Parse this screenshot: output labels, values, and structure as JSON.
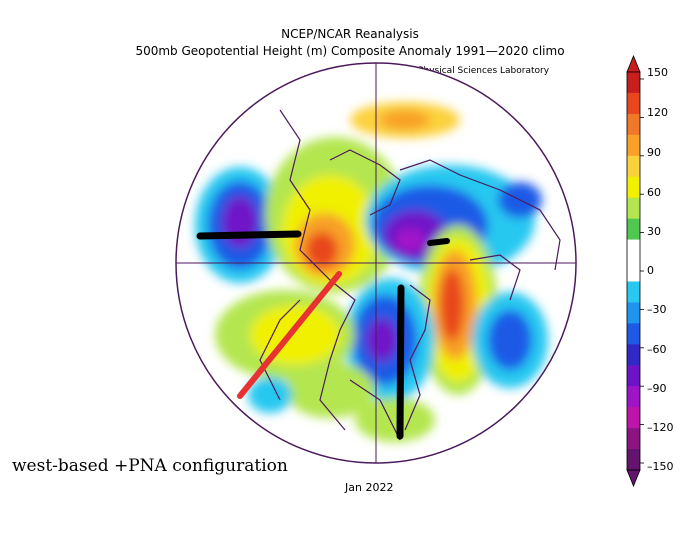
{
  "header": {
    "title": "NCEP/NCAR Reanalysis",
    "subtitle": "500mb Geopotential Height (m) Composite Anomaly 1991—2020 climo",
    "source": "NOAA Physical Sciences Laboratory"
  },
  "footer": {
    "date": "Jan 2022"
  },
  "annotation": {
    "caption": "west-based +PNA configuration"
  },
  "colorbar": {
    "labels": [
      "150",
      "120",
      "90",
      "60",
      "30",
      "0",
      "–30",
      "–60",
      "–90",
      "–120",
      "–150"
    ],
    "colors": [
      "#c81e1e",
      "#e8461e",
      "#f07828",
      "#f8a028",
      "#fcd23c",
      "#f0f000",
      "#b4e650",
      "#50c850",
      "#ffffff",
      "#ffffff",
      "#28c8f0",
      "#1e96f0",
      "#1e5ae6",
      "#3228c8",
      "#6e14c8",
      "#a014c8",
      "#be14aa",
      "#8c1482",
      "#64146e"
    ]
  },
  "colors": {
    "map_outline": "#4b1a5c",
    "red_line": "#e83232",
    "black_line": "#000000"
  }
}
